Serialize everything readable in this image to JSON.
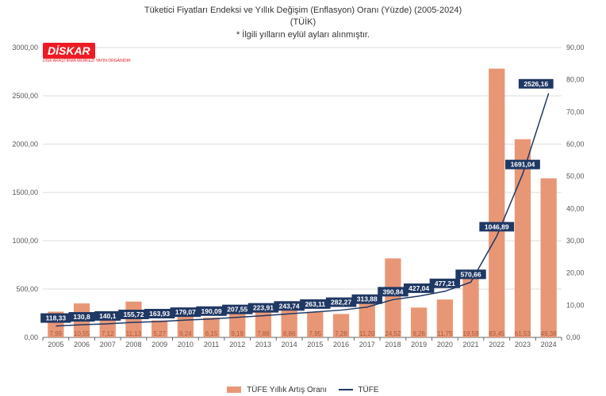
{
  "titles": {
    "main": "Tüketici Fiyatları Endeksi ve Yıllık Değişim (Enflasyon) Oranı (Yüzde) (2005-2024)",
    "sub1": "(TÜİK)",
    "sub2": "* İlgili yılların eylül ayları alınmıştır."
  },
  "logo": {
    "text": "DİSKAR",
    "sub": "DİSK ARAŞTIRMA MERKEZİ YAYIN ORGANIDIR"
  },
  "legend": {
    "bars": "TÜFE Yıllık Artış Oranı",
    "line": "TÜFE"
  },
  "chart": {
    "type": "bar+line (dual axis)",
    "background_color": "#ffffff",
    "grid_color": "#dcdcdc",
    "axis_color": "#666666",
    "bar_color": "#e89776",
    "bar_width": 0.62,
    "line_color": "#203864",
    "line_width": 1.5,
    "label_box_fill": "#203864",
    "label_box_text": "#ffffff",
    "bar_label_color": "#a85c3c",
    "tick_font_size": 9,
    "label_font_size": 9,
    "title_font_size": 11,
    "categories": [
      "2005",
      "2006",
      "2007",
      "2008",
      "2009",
      "2010",
      "2011",
      "2012",
      "2013",
      "2014",
      "2015",
      "2016",
      "2017",
      "2018",
      "2019",
      "2020",
      "2021",
      "2022",
      "2023",
      "2024"
    ],
    "bars_values": [
      7.99,
      10.55,
      7.12,
      11.13,
      5.27,
      9.24,
      6.15,
      9.19,
      7.88,
      8.86,
      7.95,
      7.28,
      11.2,
      24.52,
      9.26,
      11.75,
      19.58,
      83.45,
      61.53,
      49.38
    ],
    "left_axis": {
      "min": 0,
      "max": 3000,
      "step": 500,
      "format": "x,00"
    },
    "right_axis": {
      "min": 0,
      "max": 90,
      "step": 10,
      "format": "x,00"
    },
    "line_values": [
      118.33,
      130.8,
      140.1,
      155.72,
      163.93,
      179.07,
      190.09,
      207.55,
      223.91,
      243.74,
      263.11,
      282.27,
      313.88,
      390.84,
      427.04,
      477.21,
      570.66,
      1046.89,
      1691.04,
      2526.16
    ],
    "line_labels": [
      "118,33",
      "130,8",
      "140,1",
      "155,72",
      "163,93",
      "179,07",
      "190,09",
      "207,55",
      "223,91",
      "243,74",
      "263,11",
      "282,27",
      "313,88",
      "390,84",
      "427,04",
      "477,21",
      "570,66",
      "1046,89",
      "1691,04",
      "2526,16"
    ],
    "bar_labels": [
      "7,99",
      "10,55",
      "7,12",
      "11,13",
      "5,27",
      "9,24",
      "6,15",
      "9,19",
      "7,88",
      "8,86",
      "7,95",
      "7,28",
      "11,20",
      "24,52",
      "9,26",
      "11,75",
      "19,58",
      "83,45",
      "61,53",
      "49,38"
    ]
  }
}
